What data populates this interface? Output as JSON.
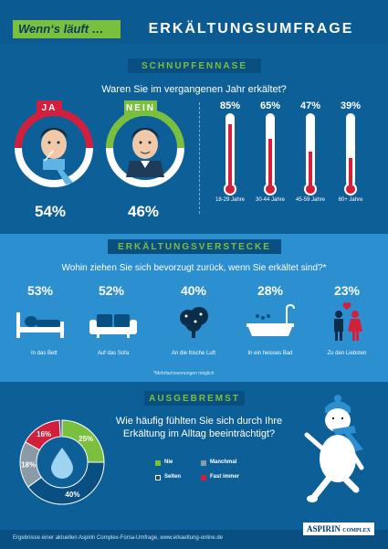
{
  "header": {
    "left": "Wenn‘s läuft …",
    "right": "ERKÄLTUNGSUMFRAGE"
  },
  "schnupfennase": {
    "title": "SCHNUPFENNASE",
    "question": "Waren Sie im vergangenen Jahr erkältet?",
    "ja": {
      "label": "JA",
      "value": "54%"
    },
    "nein": {
      "label": "NEIN",
      "value": "46%"
    },
    "age_groups": [
      {
        "value": "85%",
        "fraction": 0.85,
        "label": "18-29 Jahre"
      },
      {
        "value": "65%",
        "fraction": 0.65,
        "label": "30-44 Jahre"
      },
      {
        "value": "47%",
        "fraction": 0.47,
        "label": "45-59 Jahre"
      },
      {
        "value": "39%",
        "fraction": 0.39,
        "label": "60+ Jahre"
      }
    ]
  },
  "verstecke": {
    "title": "ERKÄLTUNGSVERSTECKE",
    "question": "Wohin ziehen Sie sich bevorzugt zurück, wenn Sie erkältet sind?*",
    "items": [
      {
        "value": "53%",
        "label": "In das Bett"
      },
      {
        "value": "52%",
        "label": "Auf das Sofa"
      },
      {
        "value": "40%",
        "label": "An die frische Luft"
      },
      {
        "value": "28%",
        "label": "In ein heisses Bad"
      },
      {
        "value": "23%",
        "label": "Zu den Liebsten"
      }
    ],
    "note": "*Mehrfachnennungen möglich"
  },
  "ausgebremst": {
    "title": "AUSGEBREMST",
    "question": "Wie häufig fühlten Sie sich durch Ihre Erkältung im Alltag beeinträchtigt?",
    "slices": [
      {
        "label": "Nie",
        "value": "25%",
        "fraction": 0.25,
        "color": "#7bbf3f"
      },
      {
        "label": "Selten",
        "value": "40%",
        "fraction": 0.4,
        "color": "#0a4f82"
      },
      {
        "label": "Manchmal",
        "value": "18%",
        "fraction": 0.18,
        "color": "#8a9aa6"
      },
      {
        "label": "Fast immer",
        "value": "16%",
        "fraction": 0.16,
        "color": "#d2203c"
      }
    ]
  },
  "footer": {
    "text": "Ergebnisse einer aktuellen Aspirin Complex-Forsa-Umfrage, www.erkaeltung-online.de",
    "logo_main": "ASPIRIN",
    "logo_sub": "COMPLEX"
  },
  "colors": {
    "blue_dark": "#0d5f98",
    "blue_light": "#2c8fcf",
    "green": "#7bbf3f",
    "red": "#d2203c"
  }
}
